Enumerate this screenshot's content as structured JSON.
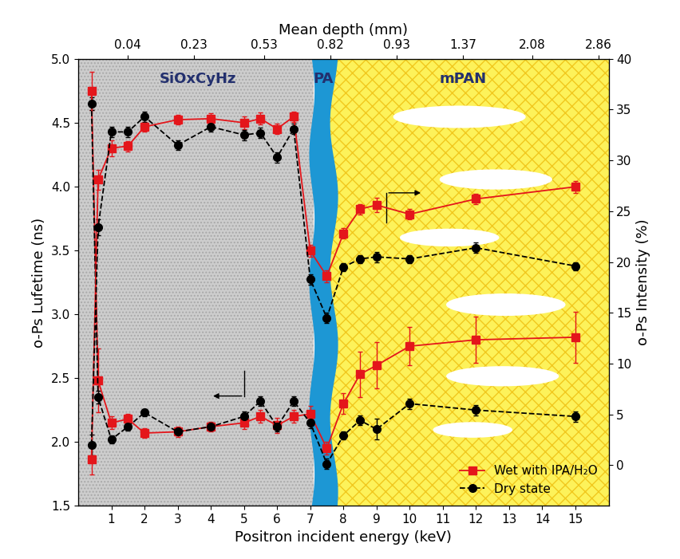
{
  "chart_data": {
    "type": "line",
    "xlabel": "Positron incident energy (keV)",
    "ylabel": "o-Ps Lufetime (ns)",
    "y2label": "o-Ps Intensity (%)",
    "x2label": "Mean depth (mm)",
    "annotations": [
      "SiOxCyHz",
      "PA",
      "mPAN"
    ],
    "xlim": [
      0,
      16
    ],
    "xticks": [
      1,
      2,
      3,
      4,
      5,
      6,
      7,
      8,
      9,
      10,
      11,
      12,
      13,
      14,
      15
    ],
    "x2ticks": [
      {
        "value": 1.5,
        "label": "0.04"
      },
      {
        "value": 3.5,
        "label": "0.23"
      },
      {
        "value": 5.6,
        "label": "0.53"
      },
      {
        "value": 7.6,
        "label": "0.82"
      },
      {
        "value": 9.6,
        "label": "0.93"
      },
      {
        "value": 11.6,
        "label": "1.37"
      },
      {
        "value": 13.7,
        "label": "2.08"
      },
      {
        "value": 15.7,
        "label": "2.86"
      }
    ],
    "ylim": [
      1.5,
      5.0
    ],
    "yticks": [
      1.5,
      2.0,
      2.5,
      3.0,
      3.5,
      4.0,
      4.5,
      5.0
    ],
    "y2lim": [
      -4,
      40
    ],
    "y2ticks": [
      0,
      5,
      10,
      15,
      20,
      25,
      30,
      35,
      40
    ],
    "legend": "lower right",
    "x": [
      0.4,
      0.6,
      1,
      1.5,
      2,
      3,
      4,
      5,
      5.5,
      6,
      6.5,
      7,
      7.5,
      8,
      8.5,
      9,
      10,
      12,
      15
    ],
    "series": [
      {
        "name": "Wet with IPA/H₂O",
        "color": "#e4161b",
        "marker": "square",
        "line_style": "solid",
        "axis": "y",
        "values": [
          4.75,
          2.48,
          2.15,
          2.18,
          2.07,
          2.08,
          2.12,
          2.15,
          2.2,
          2.13,
          2.2,
          2.22,
          1.95,
          2.3,
          2.53,
          2.6,
          2.75,
          2.8,
          2.82
        ],
        "errors": [
          0.15,
          0.25,
          0.05,
          0.04,
          0.04,
          0.04,
          0.04,
          0.05,
          0.05,
          0.06,
          0.05,
          0.06,
          0.05,
          0.08,
          0.18,
          0.18,
          0.15,
          0.18,
          0.2
        ]
      },
      {
        "name": "Dry state",
        "color": "#000000",
        "marker": "circle",
        "line_style": "dashed",
        "axis": "y",
        "values": [
          4.65,
          2.35,
          2.02,
          2.12,
          2.23,
          2.08,
          2.12,
          2.2,
          2.32,
          2.12,
          2.32,
          2.15,
          1.83,
          2.05,
          2.17,
          2.1,
          2.3,
          2.25,
          2.2
        ],
        "errors": [
          0.05,
          0.05,
          0.03,
          0.03,
          0.03,
          0.03,
          0.03,
          0.04,
          0.04,
          0.04,
          0.04,
          0.04,
          0.04,
          0.03,
          0.04,
          0.08,
          0.04,
          0.04,
          0.04
        ]
      },
      {
        "name": "Wet with IPA/H₂O",
        "color": "#e4161b",
        "marker": "square",
        "line_style": "solid",
        "axis": "y2",
        "values": [
          0.6,
          28.1,
          31.2,
          31.4,
          33.3,
          34.0,
          34.1,
          33.7,
          34.1,
          33.1,
          34.3,
          21.1,
          18.6,
          22.8,
          25.2,
          25.6,
          24.7,
          26.2,
          27.4
        ],
        "errors": [
          1.5,
          1.0,
          0.8,
          0.5,
          0.5,
          0.5,
          0.5,
          0.6,
          0.6,
          0.5,
          0.5,
          0.6,
          0.6,
          0.5,
          0.5,
          0.7,
          0.5,
          0.5,
          0.6
        ]
      },
      {
        "name": "Dry state",
        "color": "#000000",
        "marker": "circle",
        "line_style": "dashed",
        "axis": "y2",
        "values": [
          2.0,
          23.4,
          32.8,
          32.8,
          34.3,
          31.5,
          33.3,
          32.5,
          32.7,
          30.3,
          33.1,
          18.3,
          14.5,
          19.5,
          20.3,
          20.5,
          20.3,
          21.4,
          19.6
        ],
        "errors": [
          1.0,
          0.8,
          0.5,
          0.5,
          0.5,
          0.5,
          0.5,
          0.5,
          0.5,
          0.5,
          0.5,
          0.5,
          0.5,
          0.4,
          0.4,
          0.5,
          0.4,
          0.5,
          0.4
        ]
      }
    ]
  }
}
